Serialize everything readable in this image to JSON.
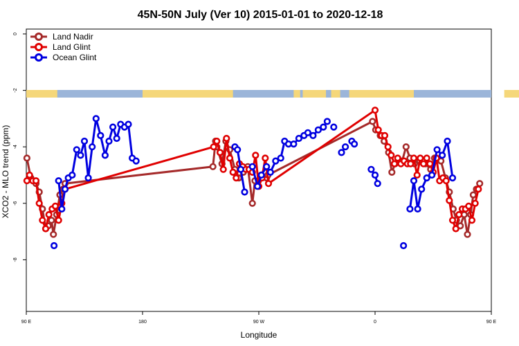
{
  "chart_data": {
    "type": "line",
    "title": "45N-50N July (Ver 10)   2015-01-01 to 2020-12-18",
    "xlabel": "Longitude",
    "ylabel": "XCO2 - MLO trend (ppm)",
    "xlim": [
      90,
      450
    ],
    "ylim": [
      -10,
      0
    ],
    "y_reversed": true,
    "x_ticks": [
      {
        "value": 90,
        "label": "90 E"
      },
      {
        "value": 180,
        "label": "180"
      },
      {
        "value": 270,
        "label": "90 W"
      },
      {
        "value": 360,
        "label": "0"
      },
      {
        "value": 450,
        "label": "90 E"
      },
      {
        "value": 540,
        "label": "180"
      }
    ],
    "y_ticks": [
      {
        "value": 0,
        "label": "0"
      },
      {
        "value": -2,
        "label": "-2"
      },
      {
        "value": -4,
        "label": "-4"
      },
      {
        "value": -6,
        "label": "-6"
      },
      {
        "value": -8,
        "label": "-8"
      }
    ],
    "legend_position": "top-left",
    "land_strip_colors": {
      "land": "#F5D77A",
      "ocean": "#9BB5D9"
    },
    "series": [
      {
        "name": "Land Nadir",
        "color": "#A52A2A",
        "points": [
          [
            90.5,
            -4.4
          ],
          [
            93.5,
            -5.1
          ],
          [
            97.5,
            -5.3
          ],
          [
            100,
            -5.6
          ],
          [
            102.5,
            -6.2
          ],
          [
            105,
            -6.9
          ],
          [
            107,
            -6.8
          ],
          [
            109.5,
            -6.6
          ],
          [
            111,
            -7.1
          ],
          [
            113.5,
            -6.4
          ],
          [
            116,
            -5.7
          ],
          [
            118.5,
            -5.5
          ],
          [
            120,
            -5.3
          ],
          [
            234.5,
            -4.7
          ],
          [
            236.5,
            -3.8
          ],
          [
            237.5,
            -4.0
          ],
          [
            241.5,
            -4.6
          ],
          [
            244.5,
            -3.8
          ],
          [
            247.5,
            -4.1
          ],
          [
            251.5,
            -4.8
          ],
          [
            254.5,
            -5.1
          ],
          [
            258,
            -4.9
          ],
          [
            261.5,
            -4.7
          ],
          [
            265,
            -6.0
          ],
          [
            267,
            -5.2
          ],
          [
            272,
            -5.0
          ],
          [
            275,
            -4.9
          ],
          [
            276,
            -5.1
          ],
          [
            277,
            -5.0
          ],
          [
            358,
            -3.1
          ],
          [
            360.5,
            -3.4
          ],
          [
            364,
            -3.6
          ],
          [
            367,
            -3.8
          ],
          [
            370.5,
            -4.2
          ],
          [
            373,
            -4.9
          ],
          [
            375.5,
            -4.6
          ],
          [
            381,
            -4.5
          ],
          [
            384,
            -4.0
          ],
          [
            387,
            -4.4
          ],
          [
            390.5,
            -4.6
          ],
          [
            394.5,
            -4.5
          ],
          [
            399,
            -4.6
          ],
          [
            403,
            -4.8
          ],
          [
            406,
            -4.4
          ],
          [
            411,
            -4.5
          ],
          [
            414.5,
            -5.1
          ],
          [
            417.5,
            -5.6
          ],
          [
            420.5,
            -6.2
          ],
          [
            423,
            -6.6
          ],
          [
            426,
            -6.8
          ],
          [
            429,
            -6.4
          ],
          [
            431.5,
            -7.1
          ],
          [
            434,
            -6.4
          ],
          [
            436,
            -5.7
          ],
          [
            438.5,
            -5.5
          ],
          [
            441,
            -5.3
          ]
        ]
      },
      {
        "name": "Land Glint",
        "color": "#E00000",
        "points": [
          [
            90.5,
            -5.2
          ],
          [
            92.5,
            -5.0
          ],
          [
            95,
            -5.2
          ],
          [
            97.5,
            -5.2
          ],
          [
            100,
            -6.0
          ],
          [
            102.5,
            -6.6
          ],
          [
            105,
            -6.9
          ],
          [
            107.5,
            -6.4
          ],
          [
            110,
            -6.2
          ],
          [
            112.5,
            -6.1
          ],
          [
            115,
            -6.6
          ],
          [
            117.5,
            -6.0
          ],
          [
            120,
            -5.5
          ],
          [
            235,
            -4.0
          ],
          [
            237.5,
            -3.8
          ],
          [
            240,
            -4.2
          ],
          [
            242.5,
            -4.8
          ],
          [
            245,
            -3.7
          ],
          [
            247.5,
            -4.4
          ],
          [
            250,
            -4.9
          ],
          [
            252.5,
            -5.1
          ],
          [
            255,
            -4.6
          ],
          [
            257.5,
            -4.7
          ],
          [
            260,
            -4.8
          ],
          [
            262.5,
            -4.8
          ],
          [
            265,
            -4.9
          ],
          [
            267.5,
            -4.3
          ],
          [
            270,
            -5.4
          ],
          [
            272.5,
            -5.1
          ],
          [
            275,
            -4.4
          ],
          [
            277.5,
            -5.3
          ],
          [
            360,
            -2.7
          ],
          [
            362.5,
            -3.4
          ],
          [
            365,
            -3.6
          ],
          [
            367.5,
            -3.6
          ],
          [
            370,
            -4.0
          ],
          [
            372.5,
            -4.3
          ],
          [
            375,
            -4.6
          ],
          [
            377.5,
            -4.4
          ],
          [
            380,
            -4.6
          ],
          [
            382.5,
            -4.5
          ],
          [
            385,
            -4.6
          ],
          [
            387.5,
            -4.6
          ],
          [
            390,
            -4.4
          ],
          [
            392.5,
            -5.0
          ],
          [
            395,
            -4.4
          ],
          [
            397.5,
            -4.6
          ],
          [
            400,
            -4.4
          ],
          [
            402.5,
            -4.6
          ],
          [
            405,
            -4.9
          ],
          [
            407.5,
            -4.4
          ],
          [
            410,
            -5.2
          ],
          [
            412.5,
            -5.1
          ],
          [
            415,
            -5.2
          ],
          [
            417.5,
            -5.9
          ],
          [
            420,
            -6.6
          ],
          [
            422.5,
            -6.9
          ],
          [
            425,
            -6.4
          ],
          [
            427.5,
            -6.2
          ],
          [
            430,
            -6.2
          ],
          [
            432.5,
            -6.1
          ],
          [
            435,
            -6.6
          ],
          [
            437.5,
            -6.0
          ],
          [
            440,
            -5.5
          ]
        ]
      },
      {
        "name": "Ocean Glint",
        "color": "#0000E0",
        "points": [
          [
            111.5,
            -7.5
          ],
          [
            null,
            null
          ],
          [
            115,
            -5.2
          ],
          [
            117.5,
            -6.2
          ],
          [
            120,
            -5.5
          ],
          [
            122.5,
            -5.1
          ],
          [
            125.5,
            -5.0
          ],
          [
            129,
            -4.1
          ],
          [
            132,
            -4.3
          ],
          [
            135,
            -3.8
          ],
          [
            138,
            -5.1
          ],
          [
            141,
            -4.0
          ],
          [
            144,
            -3.0
          ],
          [
            147.5,
            -3.6
          ],
          [
            151,
            -4.3
          ],
          [
            154,
            -3.8
          ],
          [
            157,
            -3.3
          ],
          [
            160,
            -3.7
          ],
          [
            163,
            -3.2
          ],
          [
            166,
            -3.3
          ],
          [
            169,
            -3.2
          ],
          [
            172,
            -4.4
          ],
          [
            175,
            -4.5
          ],
          [
            null,
            null
          ],
          [
            251.5,
            -4.0
          ],
          [
            253.5,
            -4.1
          ],
          [
            256,
            -4.8
          ],
          [
            259,
            -5.6
          ],
          [
            null,
            null
          ],
          [
            265,
            -4.7
          ],
          [
            269,
            -5.4
          ],
          [
            272,
            -5.0
          ],
          [
            276,
            -4.7
          ],
          [
            279,
            -4.9
          ],
          [
            283,
            -4.5
          ],
          [
            287,
            -4.4
          ],
          [
            290,
            -3.8
          ],
          [
            293,
            -3.9
          ],
          [
            297,
            -3.9
          ],
          [
            301,
            -3.7
          ],
          [
            305,
            -3.6
          ],
          [
            308,
            -3.5
          ],
          [
            312,
            -3.6
          ],
          [
            316,
            -3.4
          ],
          [
            320,
            -3.3
          ],
          [
            323,
            -3.1
          ],
          [
            null,
            null
          ],
          [
            328,
            -3.3
          ],
          [
            null,
            null
          ],
          [
            334,
            -4.2
          ],
          [
            337,
            -4.0
          ],
          [
            null,
            null
          ],
          [
            342,
            -3.8
          ],
          [
            344,
            -3.9
          ],
          [
            null,
            null
          ],
          [
            357,
            -4.8
          ],
          [
            360,
            -5.0
          ],
          [
            362,
            -5.3
          ],
          [
            null,
            null
          ],
          [
            382,
            -7.5
          ],
          [
            null,
            null
          ],
          [
            387,
            -6.2
          ],
          [
            390,
            -5.2
          ],
          [
            393,
            -6.2
          ],
          [
            396,
            -5.5
          ],
          [
            400,
            -5.1
          ],
          [
            404,
            -5.0
          ],
          [
            408,
            -4.1
          ],
          [
            412,
            -4.3
          ],
          [
            416,
            -3.8
          ],
          [
            420,
            -5.1
          ]
        ]
      }
    ]
  }
}
